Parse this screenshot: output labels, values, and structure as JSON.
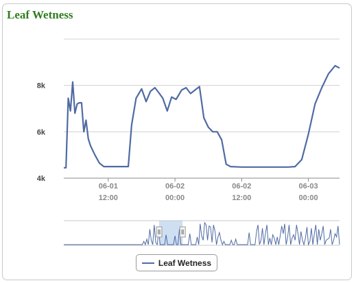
{
  "title": "Leaf Wetness",
  "legend": {
    "label": "Leaf Wetness",
    "color": "#4f6aa3"
  },
  "colors": {
    "title": "#2e7d1f",
    "series": "#4f6aa3",
    "grid": "#d0d0d0",
    "navigator_fill": "#a8c4e8"
  },
  "chart_data": {
    "type": "line",
    "series": [
      {
        "name": "Leaf Wetness",
        "x": [
          "2013-06-01 04:00",
          "2013-06-01 04:24",
          "2013-06-01 04:48",
          "2013-06-01 05:12",
          "2013-06-01 05:36",
          "2013-06-01 06:00",
          "2013-06-01 06:24",
          "2013-06-01 06:48",
          "2013-06-01 07:12",
          "2013-06-01 07:36",
          "2013-06-01 08:00",
          "2013-06-01 08:24",
          "2013-06-01 08:48",
          "2013-06-01 09:36",
          "2013-06-01 10:24",
          "2013-06-01 11:12",
          "2013-06-01 12:00",
          "2013-06-01 13:12",
          "2013-06-01 14:24",
          "2013-06-01 15:36",
          "2013-06-01 16:12",
          "2013-06-01 17:00",
          "2013-06-01 18:00",
          "2013-06-01 18:48",
          "2013-06-01 19:36",
          "2013-06-01 20:24",
          "2013-06-01 21:12",
          "2013-06-01 21:48",
          "2013-06-01 22:36",
          "2013-06-01 23:24",
          "2013-06-02 00:12",
          "2013-06-02 01:12",
          "2013-06-02 02:00",
          "2013-06-02 02:48",
          "2013-06-02 03:36",
          "2013-06-02 04:24",
          "2013-06-02 05:12",
          "2013-06-02 06:00",
          "2013-06-02 06:48",
          "2013-06-02 07:36",
          "2013-06-02 08:24",
          "2013-06-02 09:12",
          "2013-06-02 10:00",
          "2013-06-02 12:00",
          "2013-06-02 16:00",
          "2013-06-02 19:00",
          "2013-06-02 20:24",
          "2013-06-02 21:36",
          "2013-06-02 22:48",
          "2013-06-03 00:00",
          "2013-06-03 01:12",
          "2013-06-03 02:24",
          "2013-06-03 03:36",
          "2013-06-03 04:48",
          "2013-06-03 05:36"
        ],
        "y": [
          4450,
          4450,
          7450,
          6900,
          8150,
          6800,
          7200,
          7250,
          7250,
          6000,
          6500,
          5700,
          5400,
          5000,
          4650,
          4500,
          4500,
          4500,
          4500,
          4500,
          6300,
          7450,
          7850,
          7300,
          7750,
          7900,
          7650,
          7450,
          6900,
          7500,
          7400,
          7800,
          7900,
          7650,
          7800,
          7950,
          6600,
          6200,
          6000,
          6000,
          5650,
          4600,
          4500,
          4480,
          4480,
          4480,
          4480,
          4500,
          4800,
          5900,
          7200,
          7900,
          8500,
          8850,
          8750
        ]
      }
    ],
    "yticks": [
      "4k",
      "6k",
      "8k"
    ],
    "ylim": [
      4000,
      10000
    ],
    "xticks": [
      {
        "date": "06-01",
        "time": "12:00"
      },
      {
        "date": "06-02",
        "time": "00:00"
      },
      {
        "date": "06-02",
        "time": "12:00"
      },
      {
        "date": "06-03",
        "time": "00:00"
      }
    ],
    "xlim": [
      "2013-06-01 04:00",
      "2013-06-03 05:36"
    ],
    "grid": true,
    "legend_position": "bottom-center",
    "navigator": {
      "selected_range": [
        "2013-05-05",
        "2013-05-21"
      ],
      "range": [
        "2013-03-01",
        "2013-09-05"
      ],
      "values": [
        0,
        0,
        0,
        0,
        0,
        0,
        0,
        0,
        0,
        0,
        0,
        0,
        0,
        0,
        0,
        0,
        0,
        0,
        0,
        0,
        0,
        0,
        0,
        0,
        0,
        0,
        0,
        0,
        0,
        0,
        0,
        0,
        0,
        0,
        0,
        0,
        0,
        0,
        0,
        0,
        0,
        0,
        0,
        0,
        0,
        0,
        0,
        0,
        0,
        0,
        0,
        0,
        0,
        0,
        0.15,
        0,
        0.25,
        0,
        0.7,
        0.2,
        0,
        0.9,
        0.1,
        0,
        0.6,
        0,
        0,
        0,
        0,
        0.45,
        0,
        0,
        0,
        0,
        0,
        0.4,
        0,
        0,
        0.7,
        0,
        0,
        0,
        0,
        0,
        0,
        0.5,
        0,
        0,
        0,
        0,
        0.35,
        0,
        0.95,
        0.4,
        0.2,
        1,
        0.9,
        0.2,
        0.85,
        0.8,
        0.1,
        0.9,
        0.6,
        0,
        0.35,
        0.55,
        0.2,
        0,
        0.15,
        0,
        0,
        0,
        0,
        0.2,
        0,
        0,
        0.25,
        0,
        0,
        0,
        0,
        0,
        0,
        0,
        0,
        0.55,
        0,
        0,
        0,
        0,
        0.6,
        0.9,
        0,
        0.2,
        0.75,
        0,
        0.5,
        0.9,
        0,
        0.3,
        0,
        0.45,
        0.3,
        0,
        0.35,
        0,
        0.4,
        0.85,
        0.5,
        0.95,
        0,
        0.35,
        0.9,
        0,
        0.3,
        0.45,
        0.2,
        0.9,
        0.5,
        0,
        0.6,
        0.2,
        0,
        0.3,
        0.8,
        0,
        0.15,
        0.75,
        0,
        0.5,
        0.9,
        0,
        0.7,
        0.2,
        0.5,
        0.85,
        0,
        0.2,
        0.25,
        0.3,
        0.7,
        0,
        0.2,
        0.5,
        0.35,
        0.85,
        0
      ]
    }
  }
}
